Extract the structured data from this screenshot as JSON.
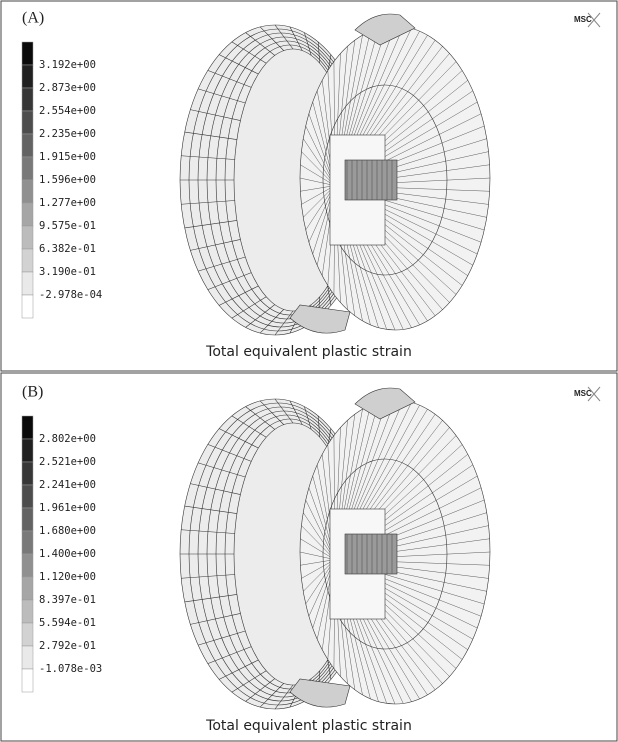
{
  "panels": [
    {
      "label": "(A)",
      "logo": "MSC",
      "caption": "Total equivalent plastic strain",
      "legend": [
        "3.192e+00",
        "2.873e+00",
        "2.554e+00",
        "2.235e+00",
        "1.915e+00",
        "1.596e+00",
        "1.277e+00",
        "9.575e-01",
        "6.382e-01",
        "3.190e-01",
        "-2.978e-04"
      ]
    },
    {
      "label": "(B)",
      "logo": "MSC",
      "caption": "Total equivalent plastic strain",
      "legend": [
        "2.802e+00",
        "2.521e+00",
        "2.241e+00",
        "1.961e+00",
        "1.680e+00",
        "1.400e+00",
        "1.120e+00",
        "8.397e-01",
        "5.594e-01",
        "2.792e-01",
        "-1.078e-03"
      ]
    }
  ]
}
